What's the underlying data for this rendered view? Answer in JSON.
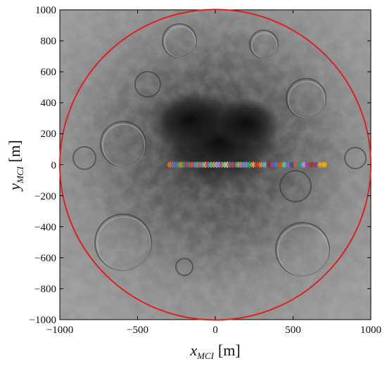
{
  "chart_data": {
    "type": "scatter",
    "title": "",
    "xlabel": {
      "main": "x",
      "subscript": "MCI",
      "unit": "[m]"
    },
    "ylabel": {
      "main": "y",
      "subscript": "MCI",
      "unit": "[m]"
    },
    "xlim": [
      -1000,
      1000
    ],
    "ylim": [
      -1000,
      1000
    ],
    "xticks": [
      -1000,
      -500,
      0,
      500,
      1000
    ],
    "yticks": [
      -1000,
      -800,
      -600,
      -400,
      -200,
      0,
      200,
      400,
      600,
      800,
      1000
    ],
    "xtick_labels": [
      "−1000",
      "−500",
      "0",
      "500",
      "1000"
    ],
    "ytick_labels": [
      "−1000",
      "−800",
      "−600",
      "−400",
      "−200",
      "0",
      "200",
      "400",
      "600",
      "800",
      "1000"
    ],
    "background": "lunar south pole surface imagery (grayscale)",
    "grid": false,
    "legend": "none",
    "circle": {
      "center": [
        0,
        0
      ],
      "radius": 1000,
      "color": "#e02020"
    },
    "marker": "asterisk",
    "points": [
      {
        "x": -290,
        "y": 0,
        "color": "#e07b2a"
      },
      {
        "x": -275,
        "y": 0,
        "color": "#c0504d"
      },
      {
        "x": -262,
        "y": 0,
        "color": "#2e86c1"
      },
      {
        "x": -245,
        "y": 0,
        "color": "#8e44ad"
      },
      {
        "x": -230,
        "y": 0,
        "color": "#27ae60"
      },
      {
        "x": -215,
        "y": 0,
        "color": "#e67e22"
      },
      {
        "x": -200,
        "y": 0,
        "color": "#16a085"
      },
      {
        "x": -185,
        "y": 0,
        "color": "#c0392b"
      },
      {
        "x": -168,
        "y": 0,
        "color": "#2980b9"
      },
      {
        "x": -150,
        "y": 0,
        "color": "#d35400"
      },
      {
        "x": -132,
        "y": 0,
        "color": "#9b59b6"
      },
      {
        "x": -115,
        "y": 0,
        "color": "#1abc9c"
      },
      {
        "x": -98,
        "y": 0,
        "color": "#e74c3c"
      },
      {
        "x": -80,
        "y": 0,
        "color": "#3498db"
      },
      {
        "x": -62,
        "y": 0,
        "color": "#f39c12"
      },
      {
        "x": -45,
        "y": 0,
        "color": "#8e44ad"
      },
      {
        "x": -28,
        "y": 0,
        "color": "#2ecc71"
      },
      {
        "x": -10,
        "y": 0,
        "color": "#e07b2a"
      },
      {
        "x": 8,
        "y": 0,
        "color": "#5dade2"
      },
      {
        "x": 25,
        "y": 0,
        "color": "#af7ac5"
      },
      {
        "x": 42,
        "y": 0,
        "color": "#c0504d"
      },
      {
        "x": 60,
        "y": 0,
        "color": "#48c9b0"
      },
      {
        "x": 78,
        "y": 0,
        "color": "#f5b041"
      },
      {
        "x": 95,
        "y": 0,
        "color": "#2874a6"
      },
      {
        "x": 112,
        "y": 0,
        "color": "#cb4335"
      },
      {
        "x": 130,
        "y": 0,
        "color": "#76448a"
      },
      {
        "x": 148,
        "y": 0,
        "color": "#52be80"
      },
      {
        "x": 165,
        "y": 0,
        "color": "#dc7633"
      },
      {
        "x": 183,
        "y": 0,
        "color": "#3498db"
      },
      {
        "x": 200,
        "y": 0,
        "color": "#a569bd"
      },
      {
        "x": 220,
        "y": 0,
        "color": "#27ae60"
      },
      {
        "x": 245,
        "y": 0,
        "color": "#e59866"
      },
      {
        "x": 270,
        "y": 0,
        "color": "#c0392b"
      },
      {
        "x": 295,
        "y": 0,
        "color": "#e67e22"
      },
      {
        "x": 320,
        "y": 0,
        "color": "#5dade2"
      },
      {
        "x": 345,
        "y": 0,
        "color": "#922b21"
      },
      {
        "x": 370,
        "y": 0,
        "color": "#8e44ad"
      },
      {
        "x": 395,
        "y": 0,
        "color": "#2e86c1"
      },
      {
        "x": 420,
        "y": 0,
        "color": "#d35400"
      },
      {
        "x": 445,
        "y": 0,
        "color": "#48c9b0"
      },
      {
        "x": 470,
        "y": 0,
        "color": "#9b59b6"
      },
      {
        "x": 495,
        "y": 0,
        "color": "#1f618d"
      },
      {
        "x": 520,
        "y": 0,
        "color": "#e74c3c"
      },
      {
        "x": 545,
        "y": 0,
        "color": "#16a085"
      },
      {
        "x": 570,
        "y": 0,
        "color": "#bb8fce"
      },
      {
        "x": 595,
        "y": 0,
        "color": "#8e44ad"
      },
      {
        "x": 620,
        "y": 0,
        "color": "#a04000"
      },
      {
        "x": 648,
        "y": 0,
        "color": "#7d3c98"
      },
      {
        "x": 675,
        "y": 0,
        "color": "#e0a030"
      },
      {
        "x": 700,
        "y": 0,
        "color": "#f0b000"
      }
    ]
  }
}
